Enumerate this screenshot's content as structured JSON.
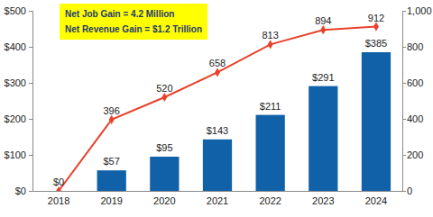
{
  "chart_data": {
    "type": "bar",
    "categories": [
      "2018",
      "2019",
      "2020",
      "2021",
      "2022",
      "2023",
      "2024"
    ],
    "series": [
      {
        "type": "bar",
        "color": "#1161a8",
        "values": [
          0,
          57,
          95,
          143,
          211,
          291,
          385
        ],
        "value_labels": [
          "$0",
          "$57",
          "$95",
          "$143",
          "$211",
          "$291",
          "$385"
        ]
      },
      {
        "type": "line",
        "axis": "y2",
        "color": "#e8412c",
        "marker": "diamond",
        "values": [
          0,
          396,
          520,
          658,
          813,
          894,
          912
        ],
        "value_labels": [
          null,
          "396",
          "520",
          "658",
          "813",
          "894",
          "912"
        ]
      }
    ],
    "ylim": [
      0,
      500
    ],
    "yticks": [
      {
        "value": 0,
        "label": "$0"
      },
      {
        "value": 100,
        "label": "$100"
      },
      {
        "value": 200,
        "label": "$200"
      },
      {
        "value": 300,
        "label": "$300"
      },
      {
        "value": 400,
        "label": "$400"
      },
      {
        "value": 500,
        "label": "$500"
      }
    ],
    "y2lim": [
      0,
      1000
    ],
    "y2ticks": [
      0,
      200,
      400,
      600,
      800,
      {
        "value": 1000,
        "label": "1,000"
      }
    ],
    "data_labels": true,
    "grid": false,
    "annotations": [
      "Net Job Gain = 4.2 Million",
      "Net Revenue Gain = $1.2 Trillion"
    ]
  }
}
